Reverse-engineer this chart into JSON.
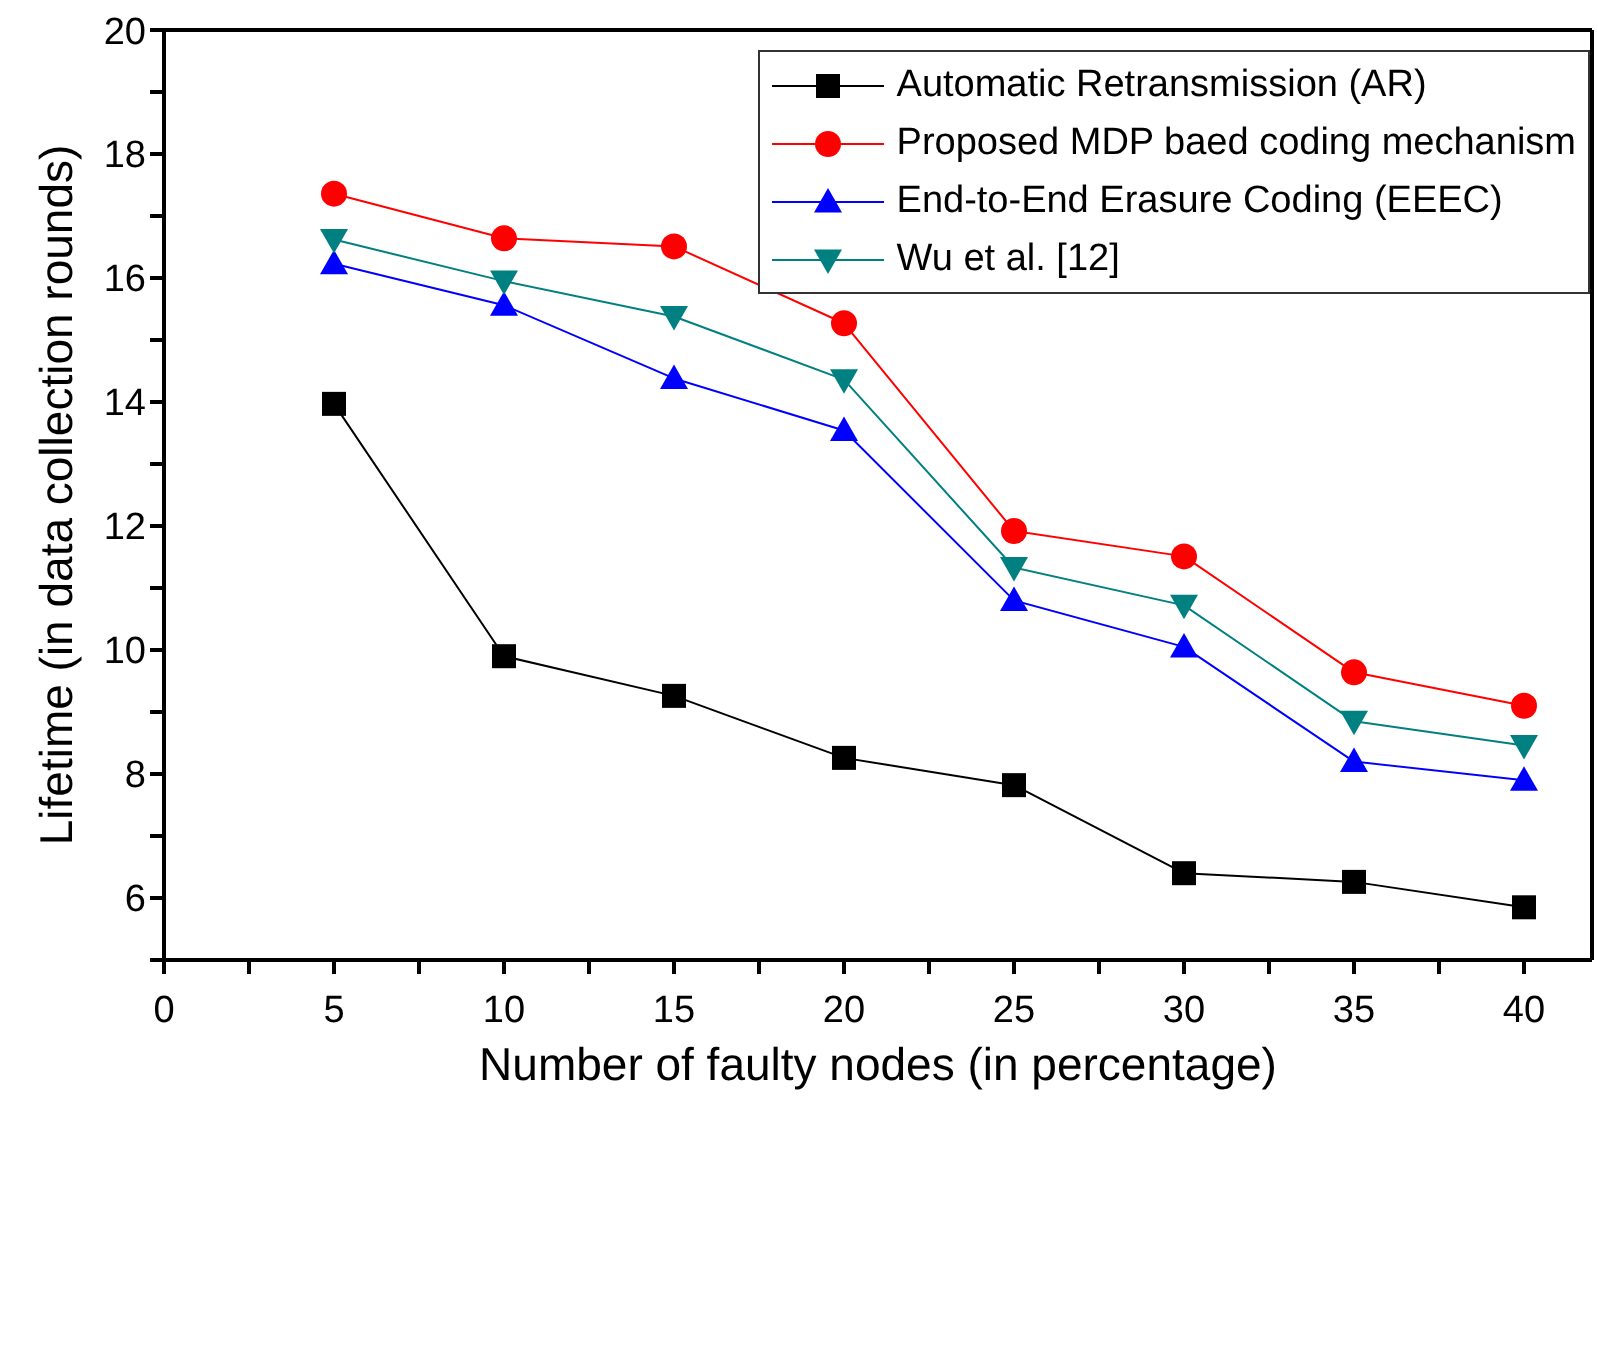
{
  "chart_data": {
    "type": "line",
    "xlabel": "Number of  faulty nodes (in percentage)",
    "ylabel": "Lifetime (in data collection rounds)",
    "x": [
      5,
      10,
      15,
      20,
      25,
      30,
      35,
      40
    ],
    "series": [
      {
        "name": "Automatic Retransmission (AR)",
        "color": "#000000",
        "marker": "square",
        "values": [
          13.97,
          9.9,
          9.26,
          8.26,
          7.82,
          6.4,
          6.26,
          5.85
        ]
      },
      {
        "name": "Proposed MDP baed coding mechanism",
        "color": "#ff0000",
        "marker": "circle",
        "values": [
          17.36,
          16.64,
          16.51,
          15.27,
          11.92,
          11.51,
          9.64,
          9.1
        ]
      },
      {
        "name": "End-to-End Erasure Coding (EEEC)",
        "color": "#0000ff",
        "marker": "triangle",
        "values": [
          16.23,
          15.56,
          14.38,
          13.54,
          10.8,
          10.05,
          8.2,
          7.9
        ]
      },
      {
        "name": "Wu et al. [12]",
        "color": "#008080",
        "marker": "triangle-down",
        "values": [
          16.62,
          15.95,
          15.38,
          14.36,
          11.33,
          10.72,
          8.85,
          8.46
        ]
      }
    ],
    "xlim": [
      0,
      42
    ],
    "xticks": [
      0,
      {
        "value": 2.5,
        "label": null
      },
      5,
      {
        "value": 7.5,
        "label": null
      },
      10,
      {
        "value": 12.5,
        "label": null
      },
      15,
      {
        "value": 17.5,
        "label": null
      },
      20,
      {
        "value": 22.5,
        "label": null
      },
      25,
      {
        "value": 27.5,
        "label": null
      },
      30,
      {
        "value": 32.5,
        "label": null
      },
      35,
      {
        "value": 37.5,
        "label": null
      },
      40
    ],
    "ylim": [
      5,
      20
    ],
    "yticks": [
      {
        "value": 5,
        "label": null
      },
      6,
      {
        "value": 7,
        "label": null
      },
      8,
      {
        "value": 9,
        "label": null
      },
      10,
      {
        "value": 11,
        "label": null
      },
      12,
      {
        "value": 13,
        "label": null
      },
      14,
      {
        "value": 15,
        "label": null
      },
      16,
      {
        "value": 17,
        "label": null
      },
      18,
      {
        "value": 19,
        "label": null
      },
      20
    ],
    "grid": false,
    "legend": "top right",
    "line_style": "solid"
  }
}
